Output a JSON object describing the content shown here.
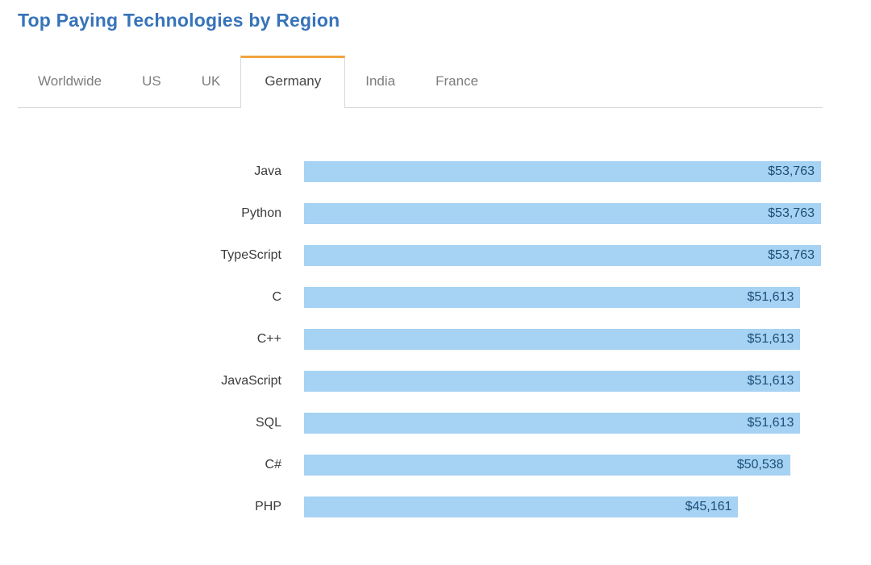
{
  "page": {
    "title": "Top Paying Technologies by Region"
  },
  "tabs": {
    "active_tab": "Germany",
    "items": [
      {
        "label": "Worldwide",
        "active": false
      },
      {
        "label": "US",
        "active": false
      },
      {
        "label": "UK",
        "active": false
      },
      {
        "label": "Germany",
        "active": true
      },
      {
        "label": "India",
        "active": false
      },
      {
        "label": "France",
        "active": false
      }
    ]
  },
  "chart_data": {
    "type": "bar",
    "orientation": "horizontal",
    "title": "Top Paying Technologies by Region",
    "region": "Germany",
    "categories": [
      "Java",
      "Python",
      "TypeScript",
      "C",
      "C++",
      "JavaScript",
      "SQL",
      "C#",
      "PHP"
    ],
    "values": [
      53763,
      53763,
      53763,
      51613,
      51613,
      51613,
      51613,
      50538,
      45161
    ],
    "value_labels": [
      "$53,763",
      "$53,763",
      "$53,763",
      "$51,613",
      "$51,613",
      "$51,613",
      "$51,613",
      "$50,538",
      "$45,161"
    ],
    "xlim": [
      0,
      53763
    ],
    "grid": false,
    "legend": false,
    "value_label_position": "inside-end"
  },
  "colors": {
    "title_color": "#3773b9",
    "active_tab_indicator": "#f0a33c",
    "bar_fill": "#a6d2f3",
    "value_text": "#1b4f78",
    "inactive_tab_text": "#7d7d7d",
    "active_tab_text": "#474747",
    "tab_border": "#d8d8d8",
    "label_text": "#3b3b3b"
  }
}
